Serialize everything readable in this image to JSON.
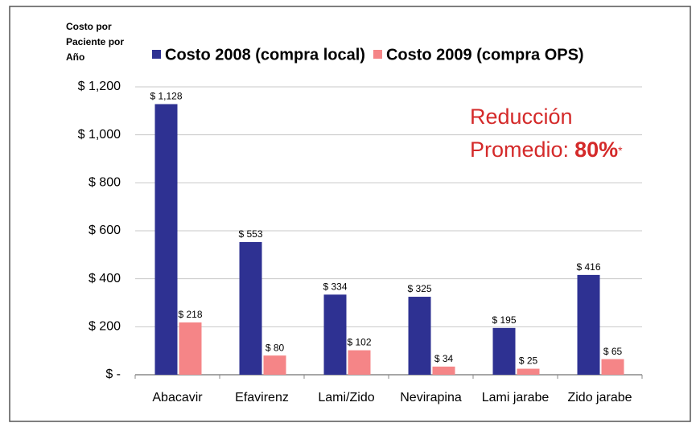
{
  "chart_data": {
    "type": "bar",
    "ylabel": [
      "Costo por",
      "Paciente por",
      "Año"
    ],
    "categories": [
      "Abacavir",
      "Efavirenz",
      "Lami/Zido",
      "Nevirapina",
      "Lami jarabe",
      "Zido jarabe"
    ],
    "series": [
      {
        "name": "Costo 2008 (compra local)",
        "color": "#2e3192",
        "values": [
          1128,
          553,
          334,
          325,
          195,
          416
        ],
        "value_labels": [
          "$ 1,128",
          "$ 553",
          "$ 334",
          "$ 325",
          "$ 195",
          "$ 416"
        ]
      },
      {
        "name": "Costo 2009 (compra OPS)",
        "color": "#f58587",
        "values": [
          218,
          80,
          102,
          34,
          25,
          65
        ],
        "value_labels": [
          "$ 218",
          "$ 80",
          "$ 102",
          "$ 34",
          "$ 25",
          "$ 65"
        ]
      }
    ],
    "ylim": [
      0,
      1200
    ],
    "yticks": [
      {
        "value": 0,
        "label": "$ -"
      },
      {
        "value": 200,
        "label": "$ 200"
      },
      {
        "value": 400,
        "label": "$ 400"
      },
      {
        "value": 600,
        "label": "$ 600"
      },
      {
        "value": 800,
        "label": "$ 800"
      },
      {
        "value": 1000,
        "label": "$ 1,000"
      },
      {
        "value": 1200,
        "label": "$ 1,200"
      }
    ],
    "grid": true,
    "annotation": {
      "line1": "Reducción",
      "line2": "Promedio:",
      "highlight": "80%",
      "mark": "*",
      "color": "#d42a2a"
    }
  }
}
